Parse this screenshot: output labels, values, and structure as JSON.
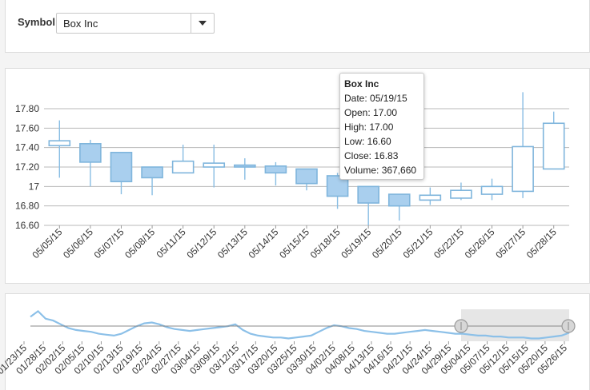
{
  "symbol": {
    "label": "Symbol",
    "value": "Box Inc"
  },
  "tooltip": {
    "title": "Box Inc",
    "date": "Date: 05/19/15",
    "open": "Open: 17.00",
    "high": "High: 17.00",
    "low": "Low: 16.60",
    "close": "Close: 16.83",
    "volume": "Volume: 367,660"
  },
  "colors": {
    "rising_stroke": "#7fb5dc",
    "falling_fill": "#a9cfee",
    "wick": "#88bde3",
    "grid": "#b8b8b8",
    "navigator_line": "#8cc0e8",
    "range_shade": "#e6e6e6"
  },
  "chart_data": [
    {
      "type": "candlestick",
      "title": "",
      "xlabel": "",
      "ylabel": "",
      "ylim": [
        16.6,
        17.8
      ],
      "y_ticks": [
        "17.80",
        "17.60",
        "17.40",
        "17.20",
        "17",
        "16.80",
        "16.60"
      ],
      "y_tick_values": [
        17.8,
        17.6,
        17.4,
        17.2,
        17.0,
        16.8,
        16.6
      ],
      "grid": true,
      "series": [
        {
          "name": "Box Inc",
          "points": [
            {
              "date": "05/05/15",
              "open": 17.42,
              "high": 17.68,
              "low": 17.09,
              "close": 17.47
            },
            {
              "date": "05/06/15",
              "open": 17.44,
              "high": 17.48,
              "low": 17.0,
              "close": 17.25
            },
            {
              "date": "05/07/15",
              "open": 17.35,
              "high": 17.35,
              "low": 16.92,
              "close": 17.05
            },
            {
              "date": "05/08/15",
              "open": 17.2,
              "high": 17.2,
              "low": 16.91,
              "close": 17.09
            },
            {
              "date": "05/11/15",
              "open": 17.14,
              "high": 17.43,
              "low": 17.14,
              "close": 17.26
            },
            {
              "date": "05/12/15",
              "open": 17.2,
              "high": 17.43,
              "low": 16.99,
              "close": 17.24
            },
            {
              "date": "05/13/15",
              "open": 17.22,
              "high": 17.29,
              "low": 17.07,
              "close": 17.2
            },
            {
              "date": "05/14/15",
              "open": 17.21,
              "high": 17.25,
              "low": 17.01,
              "close": 17.14
            },
            {
              "date": "05/15/15",
              "open": 17.18,
              "high": 17.18,
              "low": 16.96,
              "close": 17.03
            },
            {
              "date": "05/18/15",
              "open": 17.11,
              "high": 17.14,
              "low": 16.77,
              "close": 16.9
            },
            {
              "date": "05/19/15",
              "open": 17.0,
              "high": 17.0,
              "low": 16.6,
              "close": 16.83
            },
            {
              "date": "05/20/15",
              "open": 16.92,
              "high": 16.92,
              "low": 16.65,
              "close": 16.8
            },
            {
              "date": "05/21/15",
              "open": 16.86,
              "high": 16.99,
              "low": 16.81,
              "close": 16.91
            },
            {
              "date": "05/22/15",
              "open": 16.88,
              "high": 17.04,
              "low": 16.86,
              "close": 16.96
            },
            {
              "date": "05/26/15",
              "open": 16.92,
              "high": 17.08,
              "low": 16.86,
              "close": 17.0
            },
            {
              "date": "05/27/15",
              "open": 16.95,
              "high": 17.97,
              "low": 16.88,
              "close": 17.41
            },
            {
              "date": "05/28/15",
              "open": 17.18,
              "high": 17.77,
              "low": 17.18,
              "close": 17.65
            }
          ]
        }
      ]
    },
    {
      "type": "line",
      "title": "",
      "xlabel": "",
      "ylabel": "",
      "x_ticks": [
        "01/23/15",
        "01/28/15",
        "02/02/15",
        "02/05/15",
        "02/10/15",
        "02/13/15",
        "02/19/15",
        "02/24/15",
        "02/27/15",
        "03/04/15",
        "03/09/15",
        "03/12/15",
        "03/17/15",
        "03/20/15",
        "03/25/15",
        "03/30/15",
        "04/02/15",
        "04/08/15",
        "04/13/15",
        "04/16/15",
        "04/21/15",
        "04/24/15",
        "04/29/15",
        "05/04/15",
        "05/07/15",
        "05/12/15",
        "05/15/15",
        "05/20/15",
        "05/26/15"
      ],
      "selected_range": [
        "05/05/15",
        "05/28/15"
      ],
      "series": [
        {
          "name": "Box Inc",
          "values": [
            17.6,
            17.9,
            17.5,
            17.4,
            17.2,
            17.0,
            16.9,
            16.85,
            16.8,
            16.7,
            16.65,
            16.6,
            16.7,
            16.9,
            17.1,
            17.25,
            17.3,
            17.2,
            17.05,
            16.95,
            16.9,
            16.85,
            16.9,
            16.95,
            17.0,
            17.05,
            17.1,
            17.2,
            16.9,
            16.7,
            16.6,
            16.55,
            16.5,
            16.5,
            16.45,
            16.5,
            16.55,
            16.6,
            16.8,
            17.0,
            17.15,
            17.1,
            17.0,
            16.95,
            16.85,
            16.8,
            16.75,
            16.7,
            16.7,
            16.75,
            16.8,
            16.85,
            16.9,
            16.85,
            16.8,
            16.75,
            16.7,
            16.7,
            16.65,
            16.6,
            16.6,
            16.55,
            16.55,
            16.5,
            16.5,
            16.5,
            16.45,
            16.45,
            16.5,
            16.55,
            16.6,
            16.75
          ]
        }
      ]
    }
  ]
}
